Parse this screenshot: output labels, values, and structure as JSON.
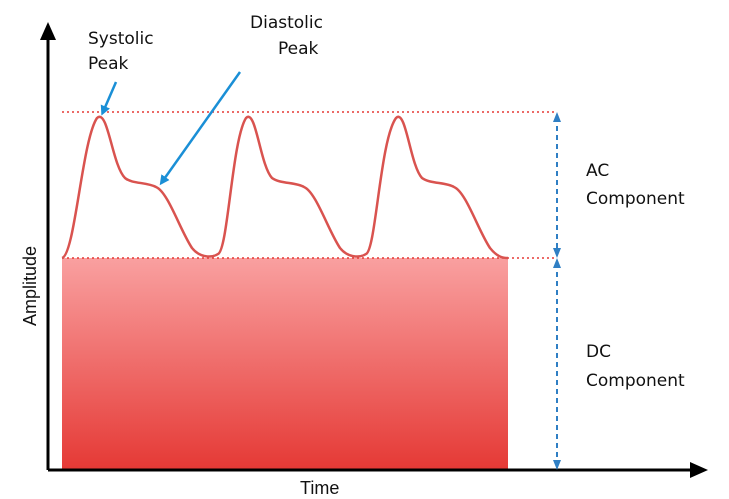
{
  "labels": {
    "systolic_line1": "Systolic",
    "systolic_line2": "Peak",
    "diastolic_line1": "Diastolic",
    "diastolic_line2": "Peak",
    "ac_line1": "AC",
    "ac_line2": "Component",
    "dc_line1": "DC",
    "dc_line2": "Component",
    "x_axis": "Time",
    "y_axis": "Amplitude"
  },
  "colors": {
    "waveform": "#d9534f",
    "dc_top": "#f9a0a0",
    "dc_bottom": "#e53935",
    "reference_line": "#e53935",
    "annotation_arrow": "#1a8fd6",
    "dimension_arrow": "#2f7fc4",
    "axis": "#000000"
  }
}
